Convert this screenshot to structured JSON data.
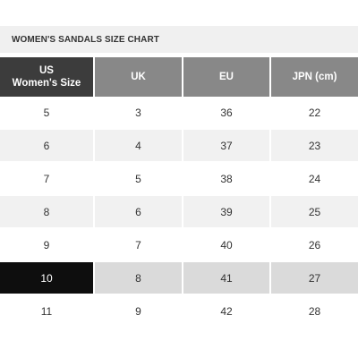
{
  "title": "WOMEN'S SANDALS SIZE CHART",
  "columns": {
    "us_line1": "US",
    "us_line2": "Women's Size",
    "uk": "UK",
    "eu": "EU",
    "jpn": "JPN (cm)"
  },
  "rows": [
    {
      "us": "5",
      "uk": "3",
      "eu": "36",
      "jpn": "22"
    },
    {
      "us": "6",
      "uk": "4",
      "eu": "37",
      "jpn": "23"
    },
    {
      "us": "7",
      "uk": "5",
      "eu": "38",
      "jpn": "24"
    },
    {
      "us": "8",
      "uk": "6",
      "eu": "39",
      "jpn": "25"
    },
    {
      "us": "9",
      "uk": "7",
      "eu": "40",
      "jpn": "26"
    },
    {
      "us": "10",
      "uk": "8",
      "eu": "41",
      "jpn": "27"
    },
    {
      "us": "11",
      "uk": "9",
      "eu": "42",
      "jpn": "28"
    }
  ],
  "highlighted_row": "10",
  "colors": {
    "header_first": "#3c3c3c",
    "header_other": "#888888",
    "row_alt": "#f1f1f1",
    "highlight_first": "#0e0e0e",
    "highlight_other": "#dadada"
  }
}
